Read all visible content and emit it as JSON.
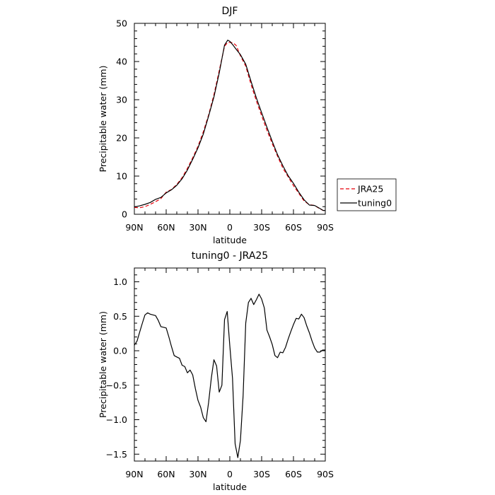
{
  "chart_data": [
    {
      "type": "line",
      "title": "DJF",
      "xlabel": "latitude",
      "ylabel": "Precipitable water  (mm)",
      "xlim": [
        -90,
        90
      ],
      "ylim": [
        0,
        50
      ],
      "x_ticks": [
        -90,
        -60,
        -30,
        0,
        30,
        60,
        90
      ],
      "x_tick_labels": [
        "90N",
        "60N",
        "30N",
        "0",
        "30S",
        "60S",
        "90S"
      ],
      "y_ticks": [
        0,
        10,
        20,
        30,
        40,
        50
      ],
      "y_tick_labels": [
        "0",
        "10",
        "20",
        "30",
        "40",
        "50"
      ],
      "legend": {
        "position": "right",
        "entries": [
          "JRA25",
          "tuning0"
        ]
      },
      "series": [
        {
          "name": "JRA25",
          "color": "#e8000b",
          "dash": "dashed",
          "x": [
            -90,
            -85,
            -80,
            -75,
            -70,
            -65,
            -60,
            -55,
            -50,
            -45,
            -40,
            -35,
            -30,
            -25,
            -20,
            -15,
            -10,
            -5,
            -2,
            0,
            3,
            6,
            10,
            15,
            20,
            25,
            30,
            35,
            40,
            45,
            50,
            55,
            60,
            65,
            70,
            75,
            80,
            85,
            88,
            90
          ],
          "y": [
            1.8,
            1.7,
            2.0,
            2.6,
            3.3,
            4.1,
            5.8,
            6.5,
            7.8,
            9.6,
            12.0,
            14.8,
            17.8,
            21.6,
            26.0,
            31.3,
            37.6,
            44.0,
            45.0,
            45.0,
            44.9,
            44.2,
            41.5,
            38.8,
            34.0,
            29.7,
            25.8,
            22.0,
            18.5,
            15.2,
            12.1,
            9.8,
            7.5,
            5.5,
            3.5,
            2.5,
            2.3,
            1.4,
            1.0,
            1.0
          ]
        },
        {
          "name": "tuning0",
          "color": "#000000",
          "dash": "solid",
          "x": [
            -90,
            -85,
            -80,
            -75,
            -70,
            -65,
            -60,
            -55,
            -50,
            -45,
            -40,
            -35,
            -30,
            -25,
            -20,
            -15,
            -10,
            -5,
            -2,
            0,
            3,
            6,
            10,
            15,
            20,
            25,
            30,
            35,
            40,
            45,
            50,
            55,
            60,
            65,
            70,
            75,
            80,
            85,
            88,
            90
          ],
          "y": [
            1.9,
            2.2,
            2.6,
            3.1,
            3.9,
            4.4,
            5.6,
            6.4,
            7.6,
            9.3,
            11.6,
            14.4,
            17.4,
            21.0,
            25.7,
            30.7,
            37.0,
            44.3,
            45.6,
            45.3,
            44.3,
            43.2,
            41.8,
            39.3,
            34.8,
            30.5,
            26.6,
            22.8,
            19.1,
            15.6,
            12.7,
            10.1,
            8.1,
            5.8,
            3.8,
            2.4,
            2.3,
            1.5,
            1.0,
            1.0
          ]
        }
      ]
    },
    {
      "type": "line",
      "title": "tuning0 - JRA25",
      "xlabel": "latitude",
      "ylabel": "Precipitable water  (mm)",
      "xlim": [
        -90,
        90
      ],
      "ylim": [
        -1.6,
        1.2
      ],
      "x_ticks": [
        -90,
        -60,
        -30,
        0,
        30,
        60,
        90
      ],
      "x_tick_labels": [
        "90N",
        "60N",
        "30N",
        "0",
        "30S",
        "60S",
        "90S"
      ],
      "y_ticks": [
        -1.5,
        -1.0,
        -0.5,
        0.0,
        0.5,
        1.0
      ],
      "y_tick_labels": [
        "−1.5",
        "−1.0",
        "−0.5",
        "0.0",
        "0.5",
        "1.0"
      ],
      "series": [
        {
          "name": "",
          "color": "#000000",
          "dash": "solid",
          "x": [
            -90,
            -87.5,
            -85,
            -82.5,
            -80,
            -77.5,
            -75,
            -72.5,
            -70,
            -67.5,
            -65,
            -62.5,
            -60,
            -57.5,
            -55,
            -52.5,
            -50,
            -47.5,
            -45,
            -42.5,
            -40,
            -37.5,
            -35,
            -32.5,
            -30,
            -27.5,
            -25,
            -22.5,
            -20,
            -17.5,
            -15,
            -12.5,
            -10,
            -7.5,
            -5,
            -2.5,
            0,
            2.5,
            5,
            7.5,
            10,
            12.5,
            15,
            17.5,
            20,
            22.5,
            25,
            27.5,
            30,
            32.5,
            35,
            37.5,
            40,
            42.5,
            45,
            47.5,
            50,
            52.5,
            55,
            57.5,
            60,
            62.5,
            65,
            67.5,
            70,
            72.5,
            75,
            77.5,
            80,
            82.5,
            85,
            87.5,
            90
          ],
          "y": [
            0.08,
            0.14,
            0.27,
            0.4,
            0.52,
            0.55,
            0.53,
            0.52,
            0.51,
            0.44,
            0.35,
            0.34,
            0.33,
            0.2,
            0.06,
            -0.07,
            -0.09,
            -0.11,
            -0.21,
            -0.23,
            -0.32,
            -0.28,
            -0.35,
            -0.55,
            -0.72,
            -0.82,
            -0.97,
            -1.03,
            -0.75,
            -0.4,
            -0.13,
            -0.22,
            -0.6,
            -0.5,
            0.45,
            0.57,
            0.07,
            -0.4,
            -1.35,
            -1.55,
            -1.3,
            -0.65,
            0.4,
            0.7,
            0.76,
            0.67,
            0.74,
            0.82,
            0.75,
            0.62,
            0.3,
            0.2,
            0.09,
            -0.07,
            -0.1,
            -0.02,
            -0.03,
            0.05,
            0.17,
            0.28,
            0.38,
            0.47,
            0.46,
            0.53,
            0.48,
            0.36,
            0.26,
            0.14,
            0.04,
            -0.02,
            -0.02,
            0.01,
            0.01
          ]
        }
      ]
    }
  ]
}
